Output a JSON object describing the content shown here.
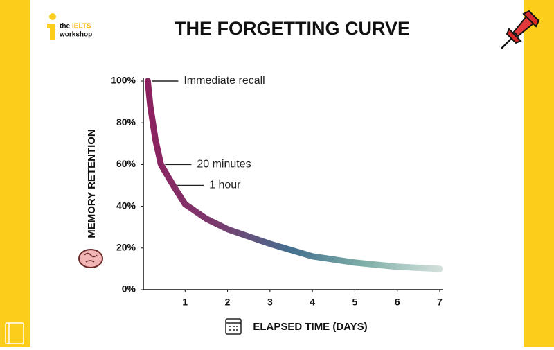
{
  "chart_data": {
    "type": "line",
    "title": "THE FORGETTING CURVE",
    "x_label": "ELAPSED TIME (DAYS)",
    "y_label": "MEMORY RETENTION",
    "x": [
      0.12,
      0.18,
      0.3,
      0.43,
      0.72,
      1,
      1.5,
      2,
      3,
      4,
      5,
      6,
      7
    ],
    "values": [
      100,
      88,
      72,
      60,
      50,
      41,
      34,
      29,
      22,
      16,
      13,
      11,
      10
    ],
    "gradient": [
      "#8e1f5e",
      "#7a3a6e",
      "#45708f",
      "#7fb0a8",
      "#d3dfdb"
    ],
    "xlim": [
      0,
      7
    ],
    "xticks": [
      1,
      2,
      3,
      4,
      5,
      6,
      7
    ],
    "ylim": [
      0,
      100
    ],
    "yticks": [
      {
        "value": 0,
        "label": "0%"
      },
      {
        "value": 20,
        "label": "20%"
      },
      {
        "value": 40,
        "label": "40%"
      },
      {
        "value": 60,
        "label": "60%"
      },
      {
        "value": 80,
        "label": "80%"
      },
      {
        "value": 100,
        "label": "100%"
      }
    ],
    "annotations": [
      {
        "text": "Immediate recall",
        "x": 0.12,
        "y": 100
      },
      {
        "text": "20 minutes",
        "x": 0.43,
        "y": 60
      },
      {
        "text": "1 hour",
        "x": 0.72,
        "y": 50
      }
    ]
  },
  "logo": {
    "the": "the",
    "brand": "IELTS",
    "sub": "workshop"
  }
}
